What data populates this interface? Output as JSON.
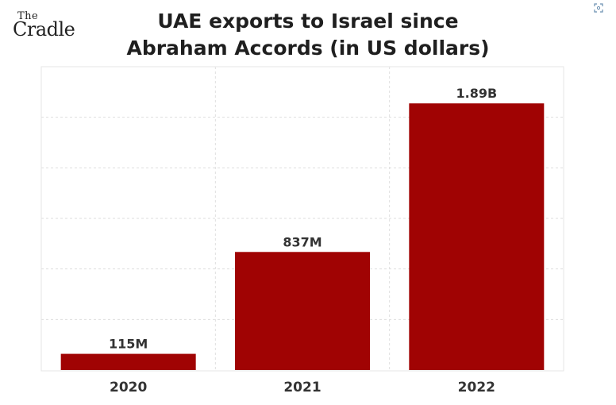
{
  "brand": {
    "logo_top": "The",
    "logo_bottom": "Cradle"
  },
  "corner_icon": "expand-icon",
  "colors": {
    "bar": "#a00303",
    "text": "#1f1f1f"
  },
  "chart_data": {
    "type": "bar",
    "title_line1": "UAE exports to Israel since",
    "title_line2": "Abraham Accords (in US dollars)",
    "categories": [
      "2020",
      "2021",
      "2022"
    ],
    "values": [
      115000000,
      837000000,
      1890000000
    ],
    "value_labels": [
      "115M",
      "837M",
      "1.89B"
    ],
    "ylim": [
      0,
      2150000000
    ],
    "grid": true,
    "legend": "none"
  }
}
